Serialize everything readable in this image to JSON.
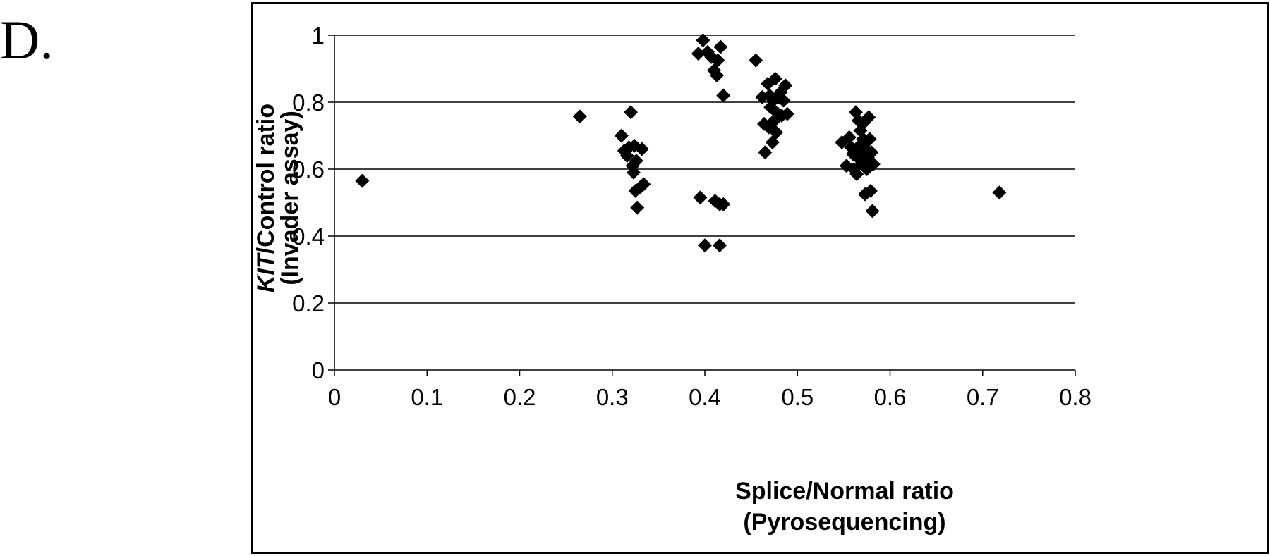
{
  "panel_label": "D.",
  "chart_data": {
    "type": "scatter",
    "xlabel_line1": "Splice/Normal ratio",
    "xlabel_line2": "(Pyrosequencing)",
    "ylabel_line1_italic": "KIT",
    "ylabel_line1_rest": "/Control ratio",
    "ylabel_line2": "(Invader assay)",
    "xlim": [
      0,
      0.8
    ],
    "ylim": [
      0,
      1
    ],
    "xticks": [
      "0",
      "0.1",
      "0.2",
      "0.3",
      "0.4",
      "0.5",
      "0.6",
      "0.7",
      "0.8"
    ],
    "yticks": [
      "0",
      "0.2",
      "0.4",
      "0.6",
      "0.8",
      "1"
    ],
    "grid": "horizontal",
    "marker": "diamond",
    "marker_color": "#000000",
    "points": [
      [
        0.03,
        0.565
      ],
      [
        0.265,
        0.757
      ],
      [
        0.31,
        0.7
      ],
      [
        0.313,
        0.655
      ],
      [
        0.316,
        0.64
      ],
      [
        0.318,
        0.665
      ],
      [
        0.32,
        0.77
      ],
      [
        0.322,
        0.61
      ],
      [
        0.323,
        0.59
      ],
      [
        0.324,
        0.67
      ],
      [
        0.325,
        0.535
      ],
      [
        0.326,
        0.625
      ],
      [
        0.327,
        0.485
      ],
      [
        0.33,
        0.545
      ],
      [
        0.332,
        0.66
      ],
      [
        0.334,
        0.555
      ],
      [
        0.393,
        0.945
      ],
      [
        0.395,
        0.515
      ],
      [
        0.398,
        0.985
      ],
      [
        0.4,
        0.372
      ],
      [
        0.403,
        0.95
      ],
      [
        0.407,
        0.935
      ],
      [
        0.41,
        0.895
      ],
      [
        0.411,
        0.505
      ],
      [
        0.413,
        0.88
      ],
      [
        0.414,
        0.925
      ],
      [
        0.416,
        0.372
      ],
      [
        0.416,
        0.495
      ],
      [
        0.417,
        0.965
      ],
      [
        0.42,
        0.495
      ],
      [
        0.42,
        0.82
      ],
      [
        0.455,
        0.925
      ],
      [
        0.462,
        0.815
      ],
      [
        0.464,
        0.735
      ],
      [
        0.465,
        0.65
      ],
      [
        0.468,
        0.855
      ],
      [
        0.469,
        0.725
      ],
      [
        0.47,
        0.82
      ],
      [
        0.471,
        0.785
      ],
      [
        0.473,
        0.68
      ],
      [
        0.474,
        0.805
      ],
      [
        0.475,
        0.745
      ],
      [
        0.476,
        0.87
      ],
      [
        0.477,
        0.71
      ],
      [
        0.479,
        0.765
      ],
      [
        0.48,
        0.815
      ],
      [
        0.482,
        0.83
      ],
      [
        0.483,
        0.76
      ],
      [
        0.485,
        0.805
      ],
      [
        0.487,
        0.85
      ],
      [
        0.489,
        0.765
      ],
      [
        0.548,
        0.68
      ],
      [
        0.553,
        0.61
      ],
      [
        0.556,
        0.695
      ],
      [
        0.558,
        0.665
      ],
      [
        0.56,
        0.645
      ],
      [
        0.561,
        0.6
      ],
      [
        0.563,
        0.77
      ],
      [
        0.564,
        0.585
      ],
      [
        0.565,
        0.635
      ],
      [
        0.566,
        0.745
      ],
      [
        0.567,
        0.67
      ],
      [
        0.568,
        0.715
      ],
      [
        0.569,
        0.655
      ],
      [
        0.57,
        0.615
      ],
      [
        0.571,
        0.69
      ],
      [
        0.572,
        0.74
      ],
      [
        0.573,
        0.525
      ],
      [
        0.574,
        0.66
      ],
      [
        0.575,
        0.6
      ],
      [
        0.576,
        0.635
      ],
      [
        0.577,
        0.755
      ],
      [
        0.578,
        0.69
      ],
      [
        0.579,
        0.535
      ],
      [
        0.58,
        0.65
      ],
      [
        0.581,
        0.475
      ],
      [
        0.582,
        0.615
      ],
      [
        0.718,
        0.53
      ]
    ]
  }
}
